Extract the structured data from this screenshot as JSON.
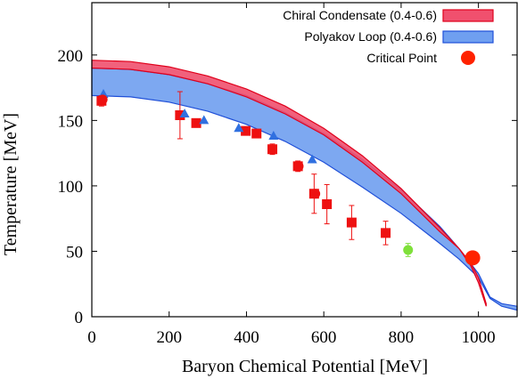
{
  "chart_data": {
    "type": "area",
    "xlabel": "Baryon Chemical Potential  [MeV]",
    "ylabel": "Temperature  [MeV]",
    "xlim": [
      0,
      1100
    ],
    "ylim": [
      0,
      240
    ],
    "x_ticks": [
      0,
      200,
      400,
      600,
      800,
      1000
    ],
    "y_ticks": [
      0,
      50,
      100,
      150,
      200
    ],
    "grid": false,
    "legend_position": "top-right",
    "series": [
      {
        "name": "Chiral Condensate (0.4-0.6)",
        "kind": "band",
        "color": "#f0506e",
        "edge_color": "#e0001b",
        "x": [
          0,
          100,
          200,
          300,
          400,
          500,
          600,
          700,
          800,
          900,
          950,
          980,
          1000,
          1020
        ],
        "upper": [
          196,
          195,
          191,
          184,
          174,
          161,
          144,
          123,
          98,
          68,
          52,
          41,
          30,
          10
        ],
        "lower": [
          190,
          189,
          185,
          178,
          168,
          155,
          139,
          118,
          94,
          65,
          52,
          39,
          26,
          8
        ]
      },
      {
        "name": "Polyakov Loop (0.4-0.6)",
        "kind": "band",
        "color": "#6f9ff0",
        "edge_color": "#1f4fd8",
        "x": [
          0,
          100,
          200,
          300,
          400,
          500,
          600,
          700,
          800,
          900,
          950,
          1000,
          1030,
          1060,
          1100
        ],
        "upper": [
          190,
          189,
          185,
          178,
          169,
          156,
          140,
          120,
          97,
          69,
          52,
          33,
          15,
          10,
          8
        ],
        "lower": [
          169,
          168,
          164,
          157,
          147,
          134,
          118,
          99,
          79,
          56,
          44,
          30,
          14,
          8,
          5
        ]
      },
      {
        "name": "Critical Point",
        "kind": "point",
        "color": "#ff2200",
        "x": [
          985
        ],
        "y": [
          45
        ]
      }
    ],
    "extra_data": [
      {
        "marker": "square",
        "color": "#ee1111",
        "points": [
          {
            "x": 25,
            "y": 165,
            "err": 4
          },
          {
            "x": 228,
            "y": 154,
            "err": 18
          },
          {
            "x": 270,
            "y": 148,
            "err": 3
          },
          {
            "x": 398,
            "y": 142,
            "err": 3
          },
          {
            "x": 426,
            "y": 140,
            "err": 3
          },
          {
            "x": 467,
            "y": 128,
            "err": 4
          },
          {
            "x": 533,
            "y": 115,
            "err": 4
          },
          {
            "x": 575,
            "y": 94,
            "err": 15
          },
          {
            "x": 608,
            "y": 86,
            "err": 15
          },
          {
            "x": 672,
            "y": 72,
            "err": 13
          },
          {
            "x": 760,
            "y": 64,
            "err": 9
          }
        ]
      },
      {
        "marker": "triangle",
        "color": "#3070e0",
        "points": [
          {
            "x": 30,
            "y": 170
          },
          {
            "x": 240,
            "y": 155
          },
          {
            "x": 290,
            "y": 150
          },
          {
            "x": 380,
            "y": 144
          },
          {
            "x": 470,
            "y": 138
          },
          {
            "x": 570,
            "y": 120
          }
        ]
      },
      {
        "marker": "circle",
        "color": "#ee1111",
        "points": [
          {
            "x": 28,
            "y": 166
          },
          {
            "x": 535,
            "y": 115
          },
          {
            "x": 578,
            "y": 94
          }
        ]
      },
      {
        "marker": "circle",
        "color": "#7fe03a",
        "points": [
          {
            "x": 818,
            "y": 51,
            "err": 5
          }
        ]
      }
    ]
  }
}
